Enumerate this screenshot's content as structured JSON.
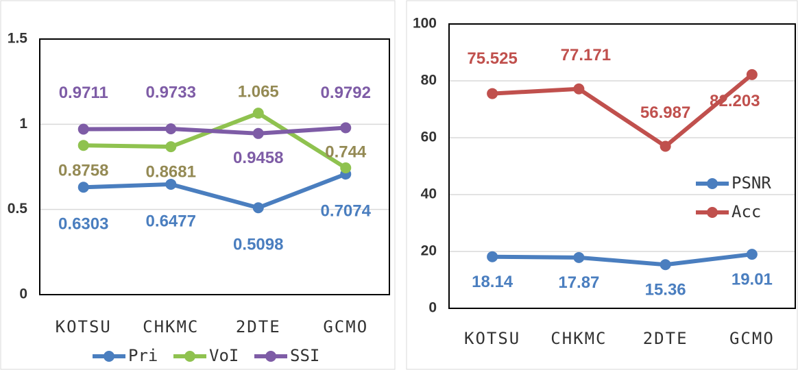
{
  "chart_data": [
    {
      "type": "line",
      "categories": [
        "KOTSU",
        "CHKMC",
        "2DTE",
        "GCMO"
      ],
      "series": [
        {
          "name": "Pri",
          "color": "#4a7ebf",
          "label_color": "#4a7ebf",
          "values": [
            0.6303,
            0.6477,
            0.5098,
            0.7074
          ]
        },
        {
          "name": "VoI",
          "color": "#8fc24f",
          "label_color": "#948a54",
          "values": [
            0.8758,
            0.8681,
            1.065,
            0.744
          ]
        },
        {
          "name": "SSI",
          "color": "#7e5ca6",
          "label_color": "#7e5ca6",
          "values": [
            0.9711,
            0.9733,
            0.9458,
            0.9792
          ]
        }
      ],
      "ylim": [
        0,
        1.5
      ],
      "yticks": [
        0,
        0.5,
        1,
        1.5
      ],
      "grid": true,
      "legend": "bottom"
    },
    {
      "type": "line",
      "categories": [
        "KOTSU",
        "CHKMC",
        "2DTE",
        "GCMO"
      ],
      "series": [
        {
          "name": "PSNR",
          "color": "#4a7ebf",
          "label_color": "#4a7ebf",
          "values": [
            18.14,
            17.87,
            15.36,
            19.01
          ]
        },
        {
          "name": "Acc",
          "color": "#c0504d",
          "label_color": "#c0504d",
          "values": [
            75.525,
            77.171,
            56.987,
            82.203
          ]
        }
      ],
      "ylim": [
        0,
        100
      ],
      "yticks": [
        0,
        20,
        40,
        60,
        80,
        100
      ],
      "grid": true,
      "legend": "right"
    }
  ]
}
